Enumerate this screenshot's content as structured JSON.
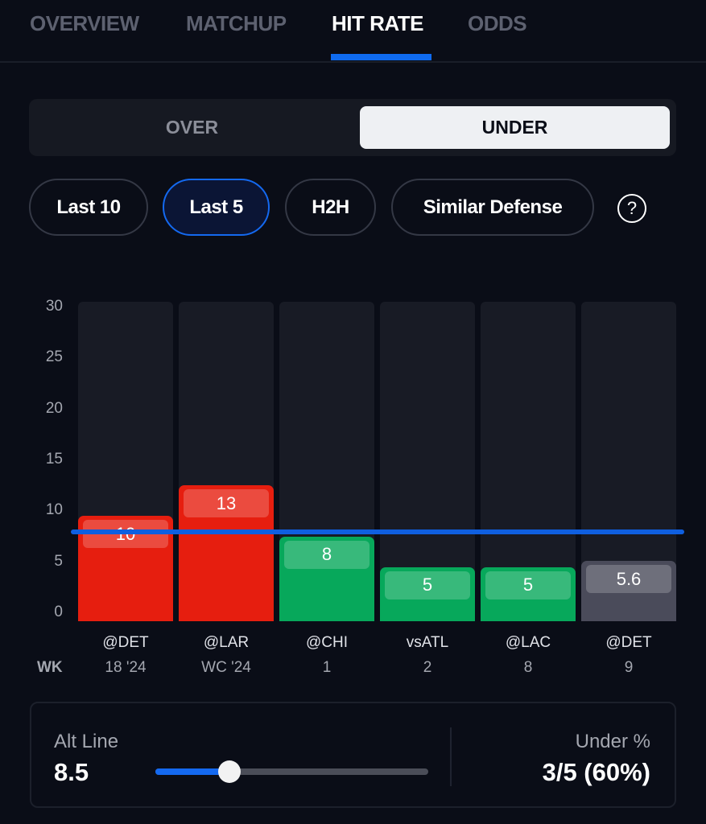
{
  "tabs": [
    {
      "label": "OVERVIEW"
    },
    {
      "label": "MATCHUP"
    },
    {
      "label": "HIT RATE",
      "active": true
    },
    {
      "label": "ODDS"
    }
  ],
  "side_toggle": {
    "over": "OVER",
    "under": "UNDER",
    "selected": "UNDER"
  },
  "filters": [
    {
      "label": "Last 10"
    },
    {
      "label": "Last 5",
      "selected": true
    },
    {
      "label": "H2H"
    },
    {
      "label": "Similar Defense"
    }
  ],
  "help_icon": "?",
  "colors": {
    "accent": "#1469f0",
    "over_hit": "#e61e0f",
    "under_hit": "#07a85b",
    "upcoming": "#4a4b5a"
  },
  "chart_data": {
    "type": "bar",
    "ylim": [
      0,
      30
    ],
    "yticks": [
      "30",
      "25",
      "20",
      "15",
      "10",
      "5",
      "0"
    ],
    "line_value": 8.5,
    "week_label": "WK",
    "categories": [
      {
        "opp": "@DET",
        "week": "18 '24",
        "value": 10,
        "label": "10",
        "status": "over"
      },
      {
        "opp": "@LAR",
        "week": "WC '24",
        "value": 13,
        "label": "13",
        "status": "over"
      },
      {
        "opp": "@CHI",
        "week": "1",
        "value": 8,
        "label": "8",
        "status": "under"
      },
      {
        "opp": "vsATL",
        "week": "2",
        "value": 5,
        "label": "5",
        "status": "under"
      },
      {
        "opp": "@LAC",
        "week": "8",
        "value": 5,
        "label": "5",
        "status": "under"
      },
      {
        "opp": "@DET",
        "week": "9",
        "value": 5.6,
        "label": "5.6",
        "status": "projection"
      }
    ]
  },
  "alt_line": {
    "label": "Alt Line",
    "value": "8.5",
    "slider_fill": 0.27
  },
  "hit_rate": {
    "label": "Under %",
    "value": "3/5 (60%)"
  }
}
